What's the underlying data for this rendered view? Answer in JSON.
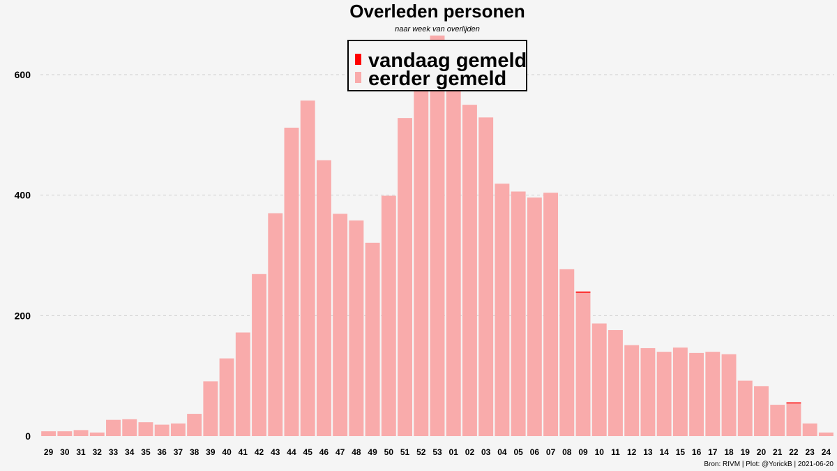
{
  "chart_data": {
    "type": "bar",
    "title": "Overleden personen",
    "subtitle": "naar week van overlijden",
    "xlabel": "",
    "ylabel": "",
    "ylim": [
      0,
      665
    ],
    "yticks": [
      0,
      200,
      400,
      600
    ],
    "grid": "horizontal dashed",
    "stacked": true,
    "categories": [
      "29",
      "30",
      "31",
      "32",
      "33",
      "34",
      "35",
      "36",
      "37",
      "38",
      "39",
      "40",
      "41",
      "42",
      "43",
      "44",
      "45",
      "46",
      "47",
      "48",
      "49",
      "50",
      "51",
      "52",
      "53",
      "01",
      "02",
      "03",
      "04",
      "05",
      "06",
      "07",
      "08",
      "09",
      "10",
      "11",
      "12",
      "13",
      "14",
      "15",
      "16",
      "17",
      "18",
      "19",
      "20",
      "21",
      "22",
      "23",
      "24"
    ],
    "series": [
      {
        "name": "eerder gemeld",
        "color": "#f9abab",
        "values": [
          8,
          8,
          10,
          6,
          27,
          28,
          23,
          19,
          21,
          37,
          91,
          129,
          172,
          269,
          370,
          512,
          557,
          458,
          369,
          358,
          321,
          399,
          528,
          580,
          665,
          585,
          550,
          529,
          419,
          406,
          396,
          404,
          277,
          238,
          187,
          176,
          151,
          146,
          140,
          147,
          138,
          140,
          136,
          92,
          83,
          52,
          55,
          21,
          6
        ]
      },
      {
        "name": "vandaag gemeld",
        "color": "#ff0000",
        "values": [
          0,
          0,
          0,
          0,
          0,
          0,
          0,
          0,
          0,
          0,
          0,
          0,
          0,
          0,
          0,
          0,
          0,
          0,
          0,
          0,
          0,
          0,
          0,
          0,
          0,
          0,
          0,
          0,
          0,
          0,
          0,
          0,
          0,
          2,
          0,
          0,
          0,
          0,
          0,
          0,
          0,
          0,
          0,
          0,
          0,
          0,
          1,
          0,
          0
        ]
      }
    ],
    "legend": {
      "position": "top-center",
      "entries": [
        "vandaag gemeld",
        "eerder gemeld"
      ]
    },
    "caption": "Bron: RIVM | Plot: @YorickB |  2021-06-20"
  }
}
